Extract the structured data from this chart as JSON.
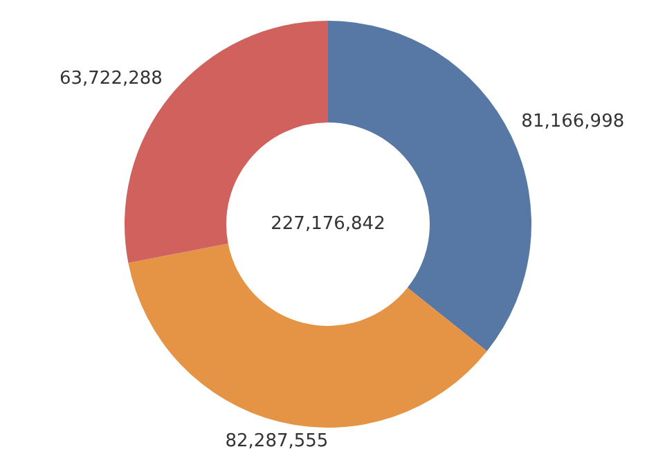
{
  "chart_data": {
    "type": "donut",
    "categories": [
      null,
      null,
      null
    ],
    "values": [
      81166998,
      82287555,
      63722288
    ],
    "colors": [
      "#5778a4",
      "#e49444",
      "#d1615d"
    ],
    "value_labels": [
      "81,166,998",
      "82,287,555",
      "63,722,288"
    ],
    "annotations": [
      "227,176,842"
    ],
    "legend": false
  }
}
